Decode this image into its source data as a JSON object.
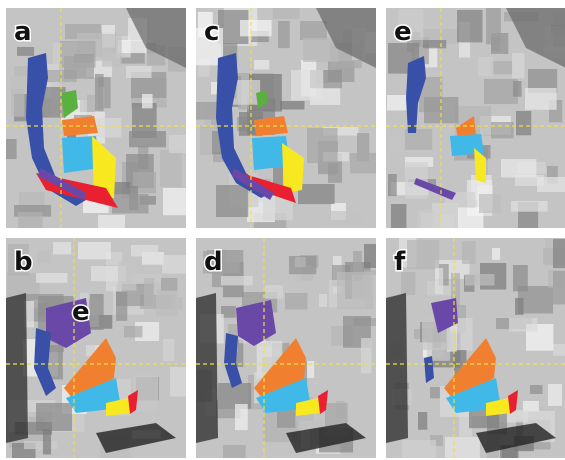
{
  "panels": [
    {
      "label": "a"
    },
    {
      "label": "c"
    },
    {
      "label": "e"
    },
    {
      "label": "b"
    },
    {
      "label": "d"
    },
    {
      "label": "f"
    }
  ],
  "annotations": [
    {
      "text": "e"
    }
  ]
}
